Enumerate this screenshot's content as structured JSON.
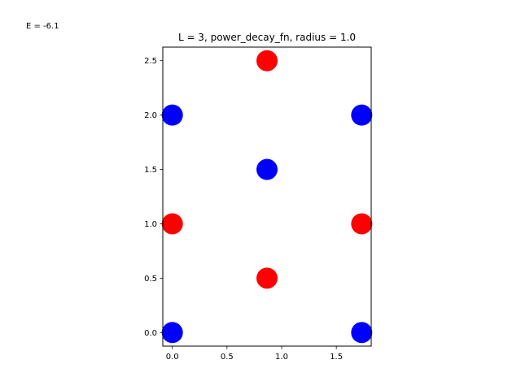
{
  "chart_data": {
    "type": "scatter",
    "title": "L = 3, power_decay_fn, radius = 1.0",
    "annotation": "E = -6.1",
    "xlabel": "",
    "ylabel": "",
    "xlim": [
      -0.087,
      1.819
    ],
    "ylim": [
      -0.125,
      2.625
    ],
    "xticks": [
      0.0,
      0.5,
      1.0,
      1.5
    ],
    "xtick_labels": [
      "0.0",
      "0.5",
      "1.0",
      "1.5"
    ],
    "yticks": [
      0.0,
      0.5,
      1.0,
      1.5,
      2.0,
      2.5
    ],
    "ytick_labels": [
      "0.0",
      "0.5",
      "1.0",
      "1.5",
      "2.0",
      "2.5"
    ],
    "grid": false,
    "series": [
      {
        "color": "#0000ff",
        "points": [
          {
            "x": 0.0,
            "y": 0.0
          },
          {
            "x": 1.732,
            "y": 0.0
          },
          {
            "x": 0.866,
            "y": 1.5
          },
          {
            "x": 0.0,
            "y": 2.0
          },
          {
            "x": 1.732,
            "y": 2.0
          }
        ]
      },
      {
        "color": "#ff0000",
        "points": [
          {
            "x": 0.866,
            "y": 0.5
          },
          {
            "x": 0.0,
            "y": 1.0
          },
          {
            "x": 1.732,
            "y": 1.0
          },
          {
            "x": 0.866,
            "y": 2.5
          }
        ]
      }
    ]
  }
}
